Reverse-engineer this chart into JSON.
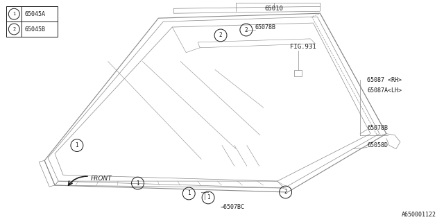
{
  "background_color": "#ffffff",
  "fig_width": 6.4,
  "fig_height": 3.2,
  "dpi": 100,
  "legend_items": [
    {
      "symbol": "1",
      "label": "65045A"
    },
    {
      "symbol": "2",
      "label": "65045B"
    }
  ],
  "ref_number": "A650001122"
}
